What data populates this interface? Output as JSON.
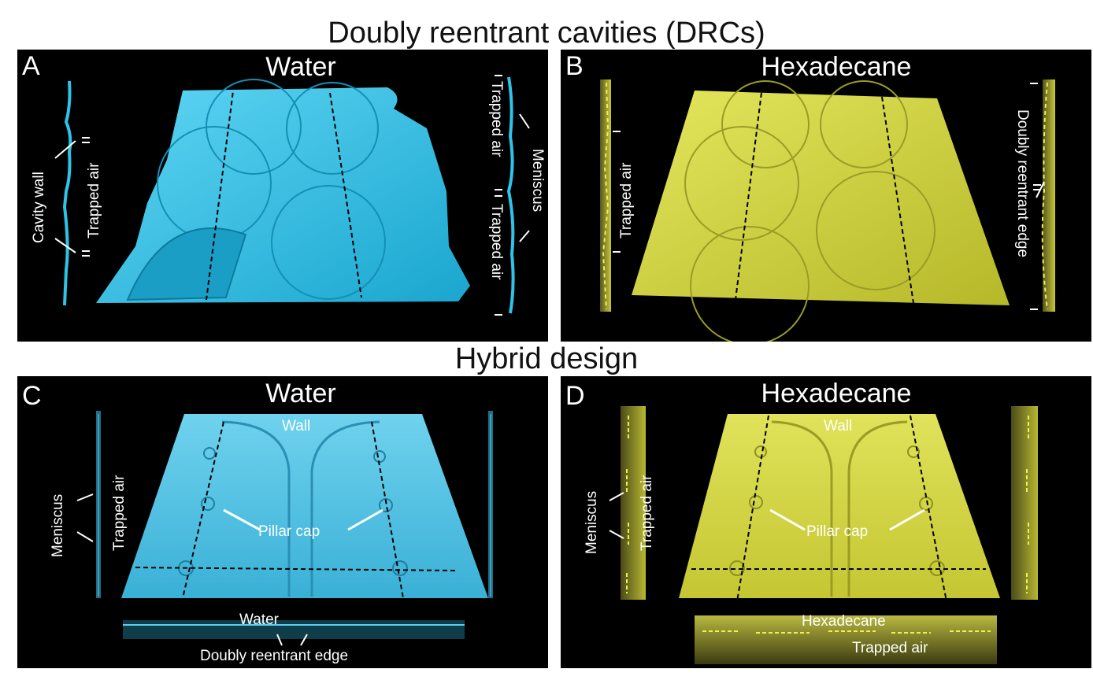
{
  "figure": {
    "section_top_title": "Doubly reentrant cavities (DRCs)",
    "section_bottom_title": "Hybrid design"
  },
  "panels": {
    "A": {
      "letter": "A",
      "title": "Water",
      "color": "#2ec4e8",
      "labels": {
        "cavity_wall": "Cavity wall",
        "trapped_air_left": "Trapped air",
        "trapped_air_right_1": "Trapped air",
        "trapped_air_right_2": "Trapped air",
        "meniscus": "Meniscus"
      }
    },
    "B": {
      "letter": "B",
      "title": "Hexadecane",
      "color": "#d4d64a",
      "labels": {
        "trapped_air": "Trapped air",
        "doubly_reentrant_edge": "Doubly reentrant edge"
      }
    },
    "C": {
      "letter": "C",
      "title": "Water",
      "color": "#4cc3e6",
      "labels": {
        "wall": "Wall",
        "pillar_cap": "Pillar cap",
        "meniscus": "Meniscus",
        "trapped_air": "Trapped air",
        "water": "Water",
        "doubly_reentrant_edge": "Doubly reentrant edge"
      }
    },
    "D": {
      "letter": "D",
      "title": "Hexadecane",
      "color": "#d8d84a",
      "labels": {
        "wall": "Wall",
        "pillar_cap": "Pillar cap",
        "meniscus": "Meniscus",
        "trapped_air": "Trapped air",
        "hexadecane": "Hexadecane",
        "trapped_air_bottom": "Trapped air"
      }
    }
  }
}
